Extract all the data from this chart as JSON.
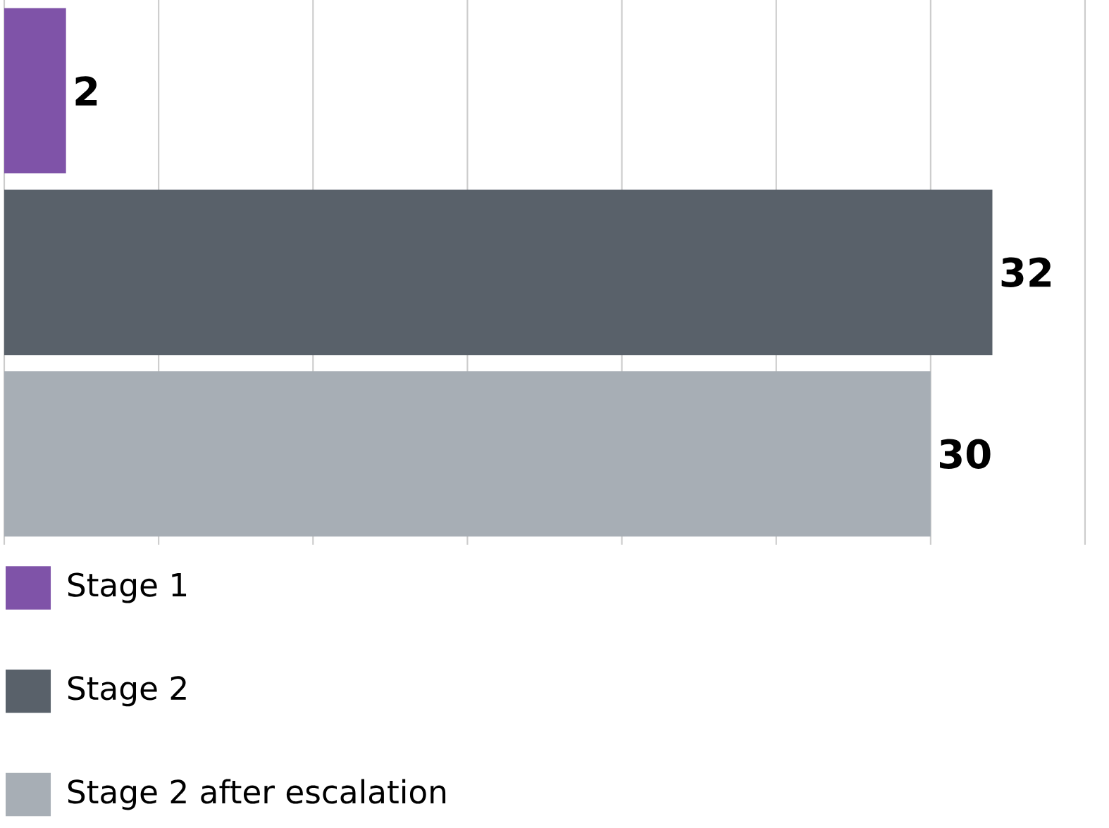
{
  "chart_data": {
    "type": "bar",
    "orientation": "horizontal",
    "categories": [
      null,
      null,
      null
    ],
    "series": [
      {
        "name": "Stage 1",
        "color": "#7f53a8",
        "values": [
          2,
          null,
          null
        ]
      },
      {
        "name": "Stage 2",
        "color": "#59616a",
        "values": [
          null,
          32,
          null
        ]
      },
      {
        "name": "Stage 2 after escalation",
        "color": "#a7aeb5",
        "values": [
          null,
          null,
          30
        ]
      }
    ],
    "xlim": [
      0,
      35
    ],
    "xticks": [
      0,
      5,
      10,
      15,
      20,
      25,
      30,
      35
    ],
    "tick_labels": false,
    "stacked": true,
    "grid": "x",
    "data_labels": true,
    "legend": "bottom left"
  }
}
